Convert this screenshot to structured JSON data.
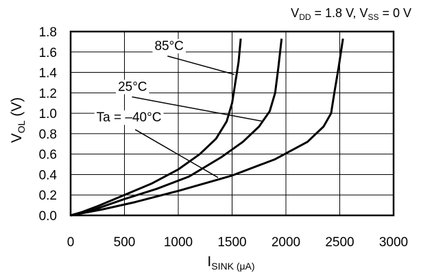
{
  "chart_data": {
    "type": "line",
    "condition": {
      "v1": "V",
      "v1_sub": "DD",
      "v1_rest": " = 1.8 V, ",
      "v2": "V",
      "v2_sub": "SS",
      "v2_rest": " = 0 V"
    },
    "xlabel": {
      "main": "I",
      "sub": "SINK (μA)"
    },
    "ylabel": {
      "main": "V",
      "sub": "OL",
      "rest": " (V)"
    },
    "xlim": [
      0,
      3000
    ],
    "ylim": [
      0,
      1.8
    ],
    "x_ticks": [
      "0",
      "500",
      "1000",
      "1500",
      "2000",
      "2500",
      "3000"
    ],
    "y_ticks": [
      "0.0",
      "0.2",
      "0.4",
      "0.6",
      "0.8",
      "1.0",
      "1.2",
      "1.4",
      "1.6",
      "1.8"
    ],
    "grid": true,
    "series": [
      {
        "name": "85°C",
        "points": [
          [
            0,
            0
          ],
          [
            100,
            0.03
          ],
          [
            250,
            0.09
          ],
          [
            500,
            0.2
          ],
          [
            750,
            0.31
          ],
          [
            1000,
            0.45
          ],
          [
            1200,
            0.6
          ],
          [
            1350,
            0.75
          ],
          [
            1450,
            0.92
          ],
          [
            1500,
            1.1
          ],
          [
            1530,
            1.3
          ],
          [
            1560,
            1.5
          ],
          [
            1580,
            1.73
          ]
        ]
      },
      {
        "name": "25°C",
        "points": [
          [
            0,
            0
          ],
          [
            200,
            0.05
          ],
          [
            500,
            0.16
          ],
          [
            800,
            0.26
          ],
          [
            1100,
            0.38
          ],
          [
            1400,
            0.57
          ],
          [
            1600,
            0.72
          ],
          [
            1750,
            0.87
          ],
          [
            1850,
            1.02
          ],
          [
            1900,
            1.2
          ],
          [
            1930,
            1.45
          ],
          [
            1960,
            1.73
          ]
        ]
      },
      {
        "name": "Ta = –40°C",
        "points": [
          [
            0,
            0
          ],
          [
            300,
            0.06
          ],
          [
            600,
            0.13
          ],
          [
            1000,
            0.24
          ],
          [
            1500,
            0.39
          ],
          [
            1900,
            0.55
          ],
          [
            2200,
            0.72
          ],
          [
            2350,
            0.87
          ],
          [
            2420,
            1.0
          ],
          [
            2450,
            1.2
          ],
          [
            2490,
            1.45
          ],
          [
            2530,
            1.73
          ]
        ]
      }
    ]
  }
}
